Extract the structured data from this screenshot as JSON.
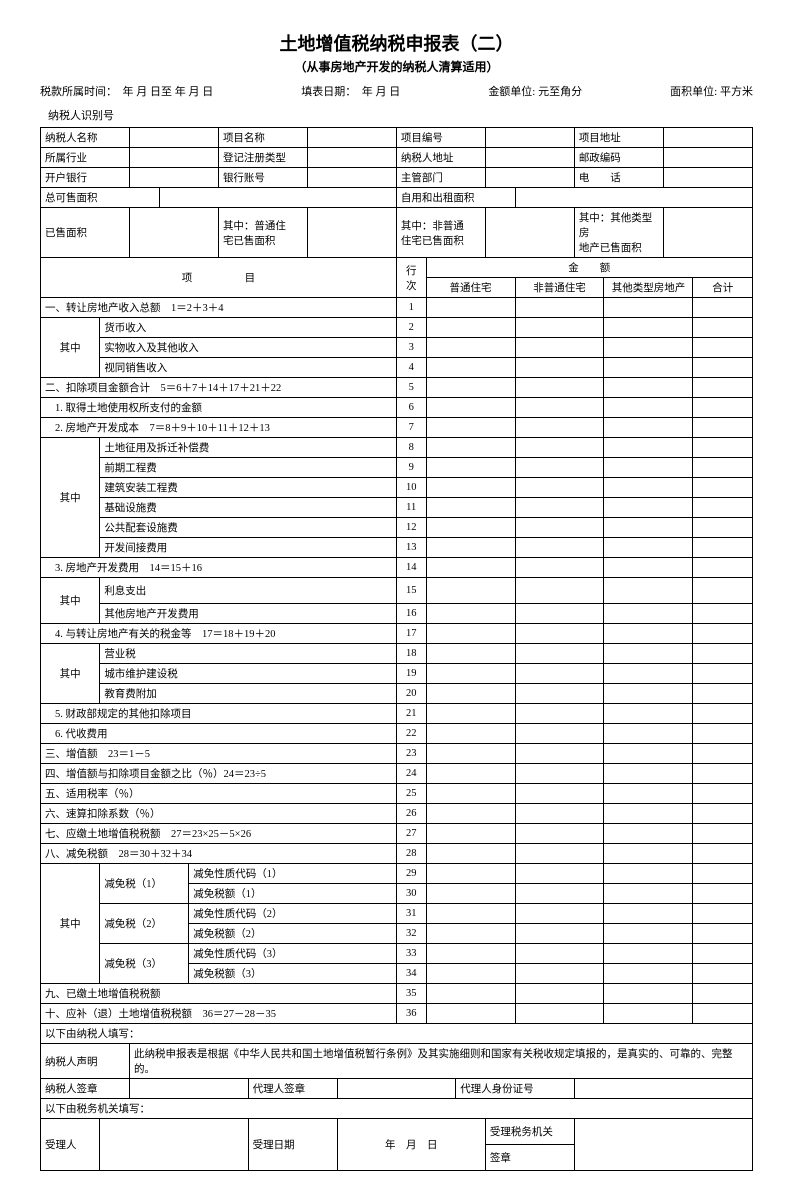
{
  "title": "土地增值税纳税申报表（二）",
  "subtitle": "（从事房地产开发的纳税人清算适用）",
  "meta": {
    "period_label": "税款所属时间：",
    "period_value": "年  月  日至    年  月  日",
    "fill_date_label": "填表日期：",
    "fill_date_value": "年    月    日",
    "money_unit_label": "金额单位: 元至角分",
    "area_unit_label": "面积单位: 平方米"
  },
  "taxpayer_id_label": "纳税人识别号",
  "info": {
    "name": "纳税人名称",
    "project_name": "项目名称",
    "project_no": "项目编号",
    "project_addr": "项目地址",
    "industry": "所属行业",
    "reg_type": "登记注册类型",
    "tax_addr": "纳税人地址",
    "postcode": "邮政编码",
    "bank": "开户银行",
    "account": "银行账号",
    "authority": "主管部门",
    "phone": "电　　话",
    "total_saleable": "总可售面积",
    "self_rent": "自用和出租面积",
    "sold_area": "已售面积",
    "sold_ordinary": "其中：普通住",
    "sold_ordinary2": "宅已售面积",
    "sold_nonord": "其中：非普通",
    "sold_nonord2": "住宅已售面积",
    "sold_other": "其中：其他类型房",
    "sold_other2": "地产已售面积"
  },
  "columns": {
    "item": "项　　　　　目",
    "row": "行次",
    "money": "金　　额",
    "ordinary": "普通住宅",
    "non_ordinary": "非普通住宅",
    "other": "其他类型房地产",
    "total": "合计"
  },
  "rows": [
    {
      "n": "1",
      "t": "一、转让房地产收入总额　1＝2＋3＋4",
      "span": "full"
    },
    {
      "n": "2",
      "t": "货币收入",
      "qz": true,
      "qzrows": 3
    },
    {
      "n": "3",
      "t": "实物收入及其他收入"
    },
    {
      "n": "4",
      "t": "视同销售收入"
    },
    {
      "n": "5",
      "t": "二、扣除项目金额合计　5＝6＋7＋14＋17＋21＋22",
      "span": "full"
    },
    {
      "n": "6",
      "t": "1. 取得土地使用权所支付的金额",
      "span": "sub"
    },
    {
      "n": "7",
      "t": "2. 房地产开发成本　7＝8＋9＋10＋11＋12＋13",
      "span": "sub"
    },
    {
      "n": "8",
      "t": "土地征用及拆迁补偿费",
      "qz": true,
      "qzrows": 6
    },
    {
      "n": "9",
      "t": "前期工程费"
    },
    {
      "n": "10",
      "t": "建筑安装工程费"
    },
    {
      "n": "11",
      "t": "基础设施费"
    },
    {
      "n": "12",
      "t": "公共配套设施费"
    },
    {
      "n": "13",
      "t": "开发间接费用"
    },
    {
      "n": "14",
      "t": "3. 房地产开发费用　14＝15＋16",
      "span": "sub"
    },
    {
      "n": "15",
      "t": "利息支出",
      "qz": true,
      "qzrows": 2,
      "tall": true
    },
    {
      "n": "16",
      "t": "其他房地产开发费用"
    },
    {
      "n": "17",
      "t": "4. 与转让房地产有关的税金等　17＝18＋19＋20",
      "span": "sub"
    },
    {
      "n": "18",
      "t": "营业税",
      "qz": true,
      "qzrows": 3
    },
    {
      "n": "19",
      "t": "城市维护建设税"
    },
    {
      "n": "20",
      "t": "教育费附加"
    },
    {
      "n": "21",
      "t": "5. 财政部规定的其他扣除项目",
      "span": "sub"
    },
    {
      "n": "22",
      "t": "6. 代收费用",
      "span": "sub"
    },
    {
      "n": "23",
      "t": "三、增值额　23＝1－5",
      "span": "full"
    },
    {
      "n": "24",
      "t": "四、增值额与扣除项目金额之比（％）24＝23÷5",
      "span": "full"
    },
    {
      "n": "25",
      "t": "五、适用税率（％）",
      "span": "full"
    },
    {
      "n": "26",
      "t": "六、速算扣除系数（％）",
      "span": "full"
    },
    {
      "n": "27",
      "t": "七、应缴土地增值税税额　27＝23×25－5×26",
      "span": "full"
    },
    {
      "n": "28",
      "t": "八、减免税额　28＝30＋32＋34",
      "span": "full"
    }
  ],
  "relief": {
    "qz": "其中",
    "groups": [
      {
        "label": "减免税（1）",
        "code": "减免性质代码（1）",
        "amt": "减免税额（1）",
        "n1": "29",
        "n2": "30"
      },
      {
        "label": "减免税（2）",
        "code": "减免性质代码（2）",
        "amt": "减免税额（2）",
        "n1": "31",
        "n2": "32"
      },
      {
        "label": "减免税（3）",
        "code": "减免性质代码（3）",
        "amt": "减免税额（3）",
        "n1": "33",
        "n2": "34"
      }
    ]
  },
  "tail_rows": [
    {
      "n": "35",
      "t": "九、已缴土地增值税税额"
    },
    {
      "n": "36",
      "t": "十、应补（退）土地增值税税额　36＝27－28－35"
    }
  ],
  "footer": {
    "fill_by_taxpayer": "以下由纳税人填写：",
    "declaration_label": "纳税人声明",
    "declaration_text": "此纳税申报表是根据《中华人民共和国土地增值税暂行条例》及其实施细则和国家有关税收规定填报的，是真实的、可靠的、完整的。",
    "taxpayer_sign": "纳税人签章",
    "agent_sign": "代理人签章",
    "agent_id": "代理人身份证号",
    "fill_by_authority": "以下由税务机关填写：",
    "receiver": "受理人",
    "receive_date": "受理日期",
    "date_placeholder": "年　月　日",
    "receive_authority": "受理税务机关",
    "stamp": "签章"
  }
}
